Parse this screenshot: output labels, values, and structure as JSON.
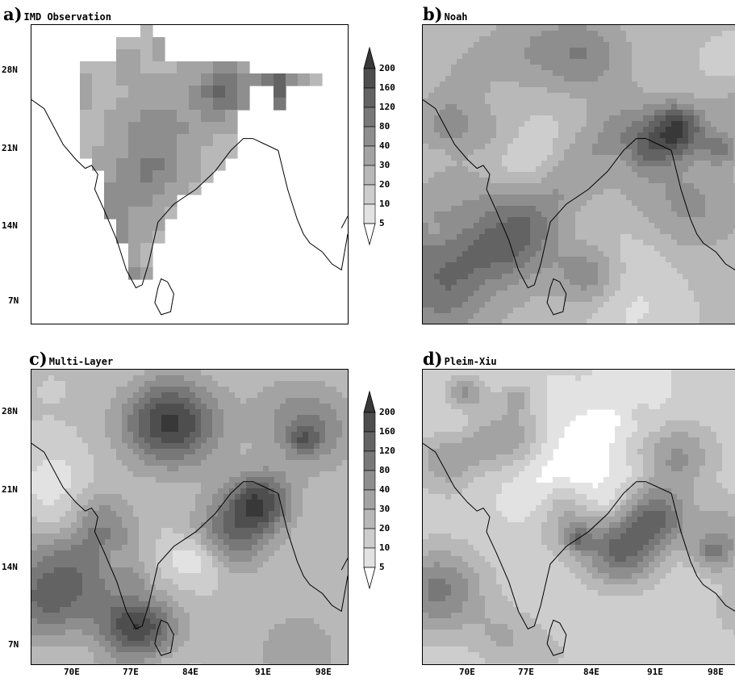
{
  "panels": [
    {
      "letter": "a)",
      "title": "IMD Observation"
    },
    {
      "letter": "b)",
      "title": "Noah"
    },
    {
      "letter": "c)",
      "title": "Multi-Layer"
    },
    {
      "letter": "d)",
      "title": "Pleim-Xiu"
    }
  ],
  "lat_labels": [
    "28N",
    "21N",
    "14N",
    "7N"
  ],
  "lon_labels": [
    "70E",
    "77E",
    "84E",
    "91E",
    "98E"
  ],
  "colorbar_levels": [
    "200",
    "160",
    "120",
    "80",
    "40",
    "30",
    "20",
    "10",
    "5"
  ],
  "colors": {
    "shades": [
      "#ffffff",
      "#e2e2e2",
      "#cdcdcd",
      "#b8b8b8",
      "#a3a3a3",
      "#8e8e8e",
      "#787878",
      "#636363",
      "#4e4e4e",
      "#383838"
    ],
    "outline": "#000000"
  }
}
